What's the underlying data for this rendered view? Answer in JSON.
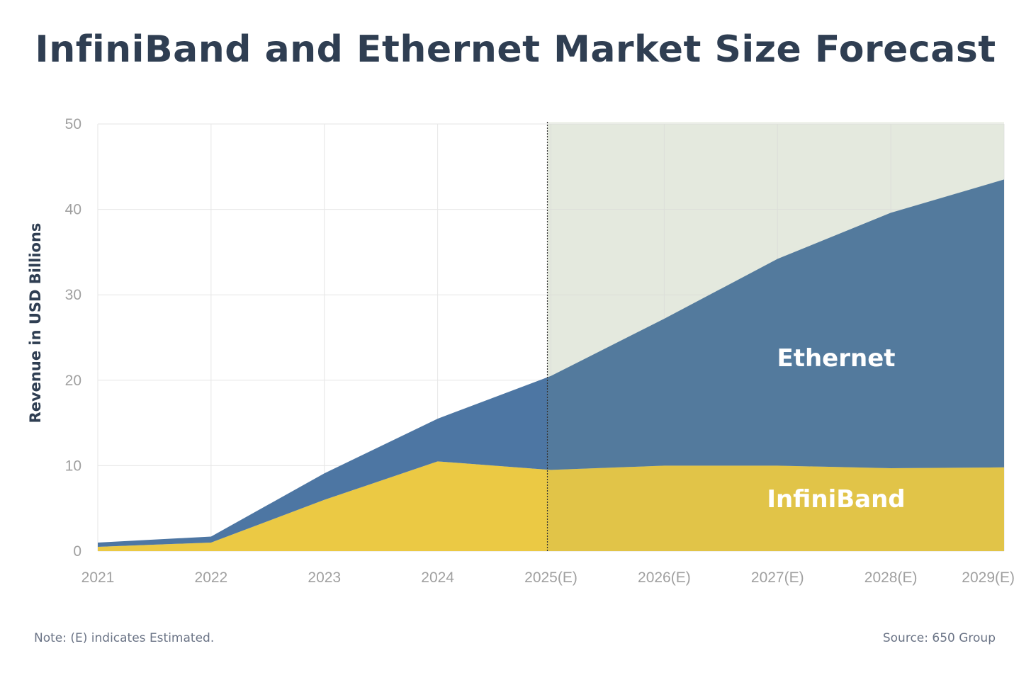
{
  "title": "InfiniBand and Ethernet Market Size Forecast",
  "note": "Note: (E) indicates Estimated.",
  "source": "Source: 650 Group",
  "chart_data": {
    "type": "area",
    "stacked": true,
    "title": "InfiniBand and Ethernet Market Size Forecast",
    "xlabel": "",
    "ylabel": "Revenue in USD Billions",
    "ylim": [
      0,
      50
    ],
    "yticks": [
      0,
      10,
      20,
      30,
      40,
      50
    ],
    "grid": true,
    "categories": [
      "2021",
      "2022",
      "2023",
      "2024",
      "2025(E)",
      "2026(E)",
      "2027(E)",
      "2028(E)",
      "2029(E)"
    ],
    "estimated_from": "2025(E)",
    "series": [
      {
        "name": "InfiniBand",
        "color": "#ebc944",
        "values": [
          0.5,
          1.0,
          6.0,
          10.5,
          9.5,
          10.0,
          10.0,
          9.7,
          9.8
        ]
      },
      {
        "name": "Ethernet",
        "color": "#4d76a3",
        "values": [
          0.5,
          0.7,
          3.1,
          5.0,
          11.0,
          17.2,
          24.2,
          29.9,
          33.7
        ]
      }
    ],
    "estimate_shade_color": "#eff2eb"
  }
}
